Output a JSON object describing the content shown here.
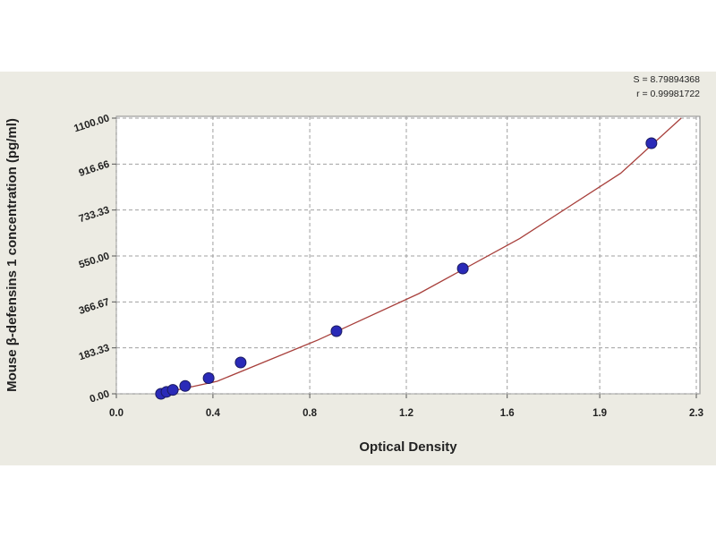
{
  "chart_data": {
    "type": "scatter",
    "x_label": "Optical Density",
    "y_label": "Mouse β-defensins 1 concentration (pg/ml)",
    "annotations": [
      "S = 8.79894368",
      "r = 0.99981722"
    ],
    "series": [
      {
        "color": "#2a2ab8",
        "x": [
          0.177,
          0.199,
          0.224,
          0.273,
          0.366,
          0.493,
          0.873,
          1.374,
          2.122
        ],
        "y": [
          0,
          7.8,
          15.6,
          31.25,
          62.5,
          125,
          250,
          500,
          1000
        ]
      }
    ],
    "fit": {
      "color": "#a8403c",
      "x": [
        0.17,
        0.4,
        0.8,
        1.2,
        1.6,
        2.0,
        2.24
      ],
      "y": [
        0,
        50,
        215,
        400,
        620,
        880,
        1100
      ]
    },
    "xlim": [
      0,
      2.3
    ],
    "ylim": [
      0,
      1100
    ],
    "xticks": [
      {
        "value": 0,
        "label": "0.0"
      },
      {
        "value": 0.383,
        "label": "0.4"
      },
      {
        "value": 0.767,
        "label": "0.8"
      },
      {
        "value": 1.15,
        "label": "1.2"
      },
      {
        "value": 1.55,
        "label": "1.6"
      },
      {
        "value": 1.917,
        "label": "1.9"
      },
      {
        "value": 2.3,
        "label": "2.3"
      }
    ],
    "yticks": [
      {
        "value": 0,
        "label": "0.00"
      },
      {
        "value": 183.33,
        "label": "183.33"
      },
      {
        "value": 366.67,
        "label": "366.67"
      },
      {
        "value": 550,
        "label": "550.00"
      },
      {
        "value": 733.33,
        "label": "733.33"
      },
      {
        "value": 916.66,
        "label": "916.66"
      },
      {
        "value": 1100,
        "label": "1100.00"
      }
    ],
    "grid": true
  }
}
